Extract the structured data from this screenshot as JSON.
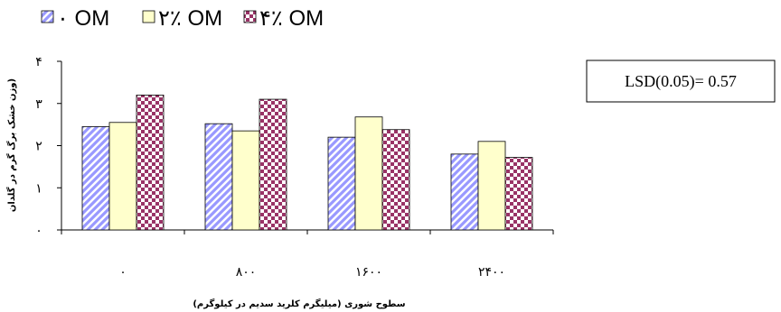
{
  "chart_data": {
    "type": "bar",
    "categories": [
      "۰",
      "۸۰۰",
      "۱۶۰۰",
      "۲۴۰۰"
    ],
    "series": [
      {
        "name": "۰ OM",
        "values": [
          2.45,
          2.52,
          2.2,
          1.8
        ],
        "pattern": "diagonal-stripes",
        "color": "#9999ff"
      },
      {
        "name": "۲٪ OM",
        "values": [
          2.55,
          2.35,
          2.68,
          2.1
        ],
        "pattern": "solid",
        "color": "#ffffcc"
      },
      {
        "name": "۴٪ OM",
        "values": [
          3.2,
          3.1,
          2.38,
          1.72
        ],
        "pattern": "checkerboard",
        "color": "#993366"
      }
    ],
    "yticks": [
      "۰",
      "۱",
      "۲",
      "۳",
      "۴"
    ],
    "ylim": [
      0,
      4
    ],
    "xlabel": "سطوح شوری (میلیگرم کلرید سدیم در کیلوگرم)",
    "ylabel": "وزن خشک برگ گرم در گلدان)",
    "annotation": "LSD(0.05)= 0.57",
    "legend_position": "top-left",
    "grid": false
  }
}
